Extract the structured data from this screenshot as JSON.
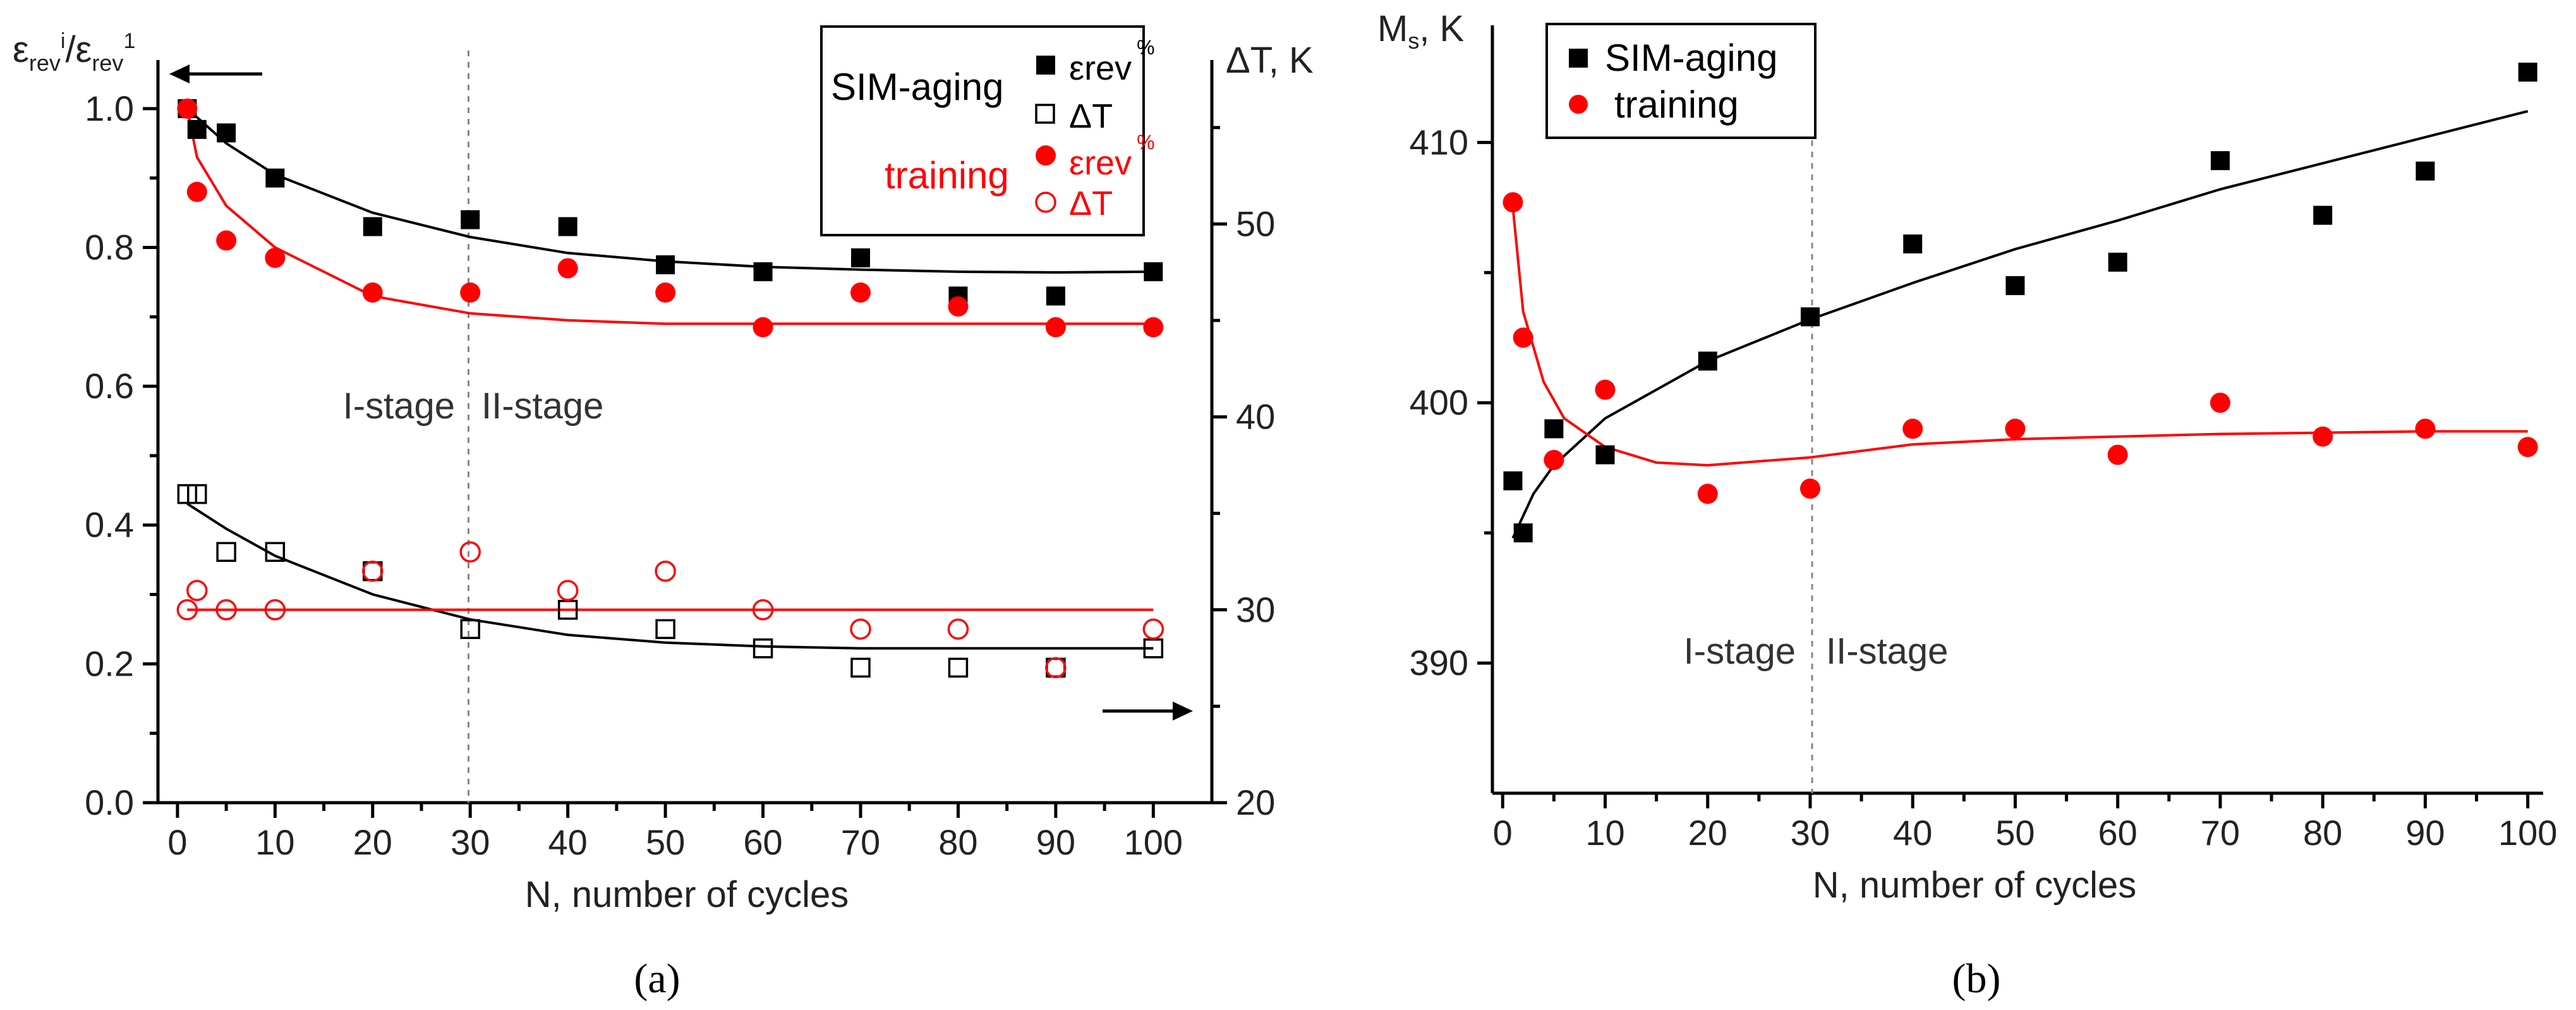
{
  "chart_data": [
    {
      "panel": "(a)",
      "type": "scatter",
      "xlabel": "N, number of cycles",
      "ylabel": "εrevi/εrev1",
      "ylabel_right": "ΔT, K",
      "xlim": [
        -2,
        106
      ],
      "ylim": [
        0,
        1.07
      ],
      "ylim_right": [
        20,
        58.5
      ],
      "xticks": [
        0,
        10,
        20,
        30,
        40,
        50,
        60,
        70,
        80,
        90,
        100
      ],
      "yticks": [
        0,
        0.2,
        0.4,
        0.6,
        0.8,
        1.0
      ],
      "yticks_right": [
        20,
        30,
        40,
        50
      ],
      "stage_labels": [
        "I-stage",
        "II-stage"
      ],
      "stage_boundary_x": 30,
      "legend_groups": [
        {
          "name": "SIM-aging",
          "color": "#000000"
        },
        {
          "name": "training",
          "color": "#ff0000"
        }
      ],
      "series": [
        {
          "name": "SIM-aging εrev%",
          "legend": "εrev",
          "legend_sup": "%",
          "color": "#000000",
          "marker": "square-filled",
          "axis": "left",
          "x": [
            1,
            2,
            5,
            10,
            20,
            30,
            40,
            50,
            60,
            70,
            80,
            90,
            100
          ],
          "y": [
            1.0,
            0.97,
            0.965,
            0.9,
            0.83,
            0.84,
            0.83,
            0.775,
            0.765,
            0.785,
            0.73,
            0.73,
            0.765
          ],
          "fit": [
            [
              1,
              1.0
            ],
            [
              5,
              0.95
            ],
            [
              10,
              0.905
            ],
            [
              20,
              0.85
            ],
            [
              30,
              0.815
            ],
            [
              40,
              0.792
            ],
            [
              50,
              0.78
            ],
            [
              60,
              0.772
            ],
            [
              70,
              0.768
            ],
            [
              80,
              0.765
            ],
            [
              90,
              0.764
            ],
            [
              100,
              0.765
            ]
          ]
        },
        {
          "name": "SIM-aging ΔT",
          "legend": "ΔT",
          "color": "#000000",
          "marker": "square-open",
          "axis": "right",
          "x": [
            1,
            2,
            5,
            10,
            20,
            30,
            40,
            50,
            60,
            70,
            80,
            90,
            100
          ],
          "y": [
            36,
            36,
            33,
            33,
            32,
            29,
            30,
            29,
            28,
            27,
            27,
            27,
            28
          ],
          "fit": [
            [
              1,
              35.5
            ],
            [
              5,
              34.2
            ],
            [
              10,
              32.8
            ],
            [
              20,
              30.8
            ],
            [
              30,
              29.5
            ],
            [
              40,
              28.7
            ],
            [
              50,
              28.3
            ],
            [
              60,
              28.1
            ],
            [
              70,
              28.0
            ],
            [
              80,
              28.0
            ],
            [
              90,
              28.0
            ],
            [
              100,
              28.0
            ]
          ]
        },
        {
          "name": "training εrev%",
          "legend": "εrev",
          "legend_sup": "%",
          "color": "#ff0000",
          "marker": "circle-filled",
          "axis": "left",
          "x": [
            1,
            2,
            5,
            10,
            20,
            30,
            40,
            50,
            60,
            70,
            80,
            90,
            100
          ],
          "y": [
            1.0,
            0.88,
            0.81,
            0.785,
            0.735,
            0.735,
            0.77,
            0.735,
            0.685,
            0.735,
            0.715,
            0.685,
            0.685
          ],
          "fit": [
            [
              1,
              1.0
            ],
            [
              2,
              0.93
            ],
            [
              5,
              0.86
            ],
            [
              10,
              0.8
            ],
            [
              20,
              0.73
            ],
            [
              30,
              0.705
            ],
            [
              40,
              0.695
            ],
            [
              50,
              0.69
            ],
            [
              60,
              0.69
            ],
            [
              80,
              0.69
            ],
            [
              100,
              0.69
            ]
          ]
        },
        {
          "name": "training ΔT",
          "legend": "ΔT",
          "color": "#ff0000",
          "marker": "circle-open",
          "axis": "right",
          "x": [
            1,
            2,
            5,
            10,
            20,
            30,
            40,
            50,
            60,
            70,
            80,
            90,
            100
          ],
          "y": [
            30,
            31,
            30,
            30,
            32,
            33,
            31,
            32,
            30,
            29,
            29,
            27,
            29
          ],
          "fit": [
            [
              1,
              30
            ],
            [
              100,
              30
            ]
          ]
        }
      ]
    },
    {
      "panel": "(b)",
      "type": "scatter",
      "xlabel": "N, number of cycles",
      "ylabel": "Ms, K",
      "xlim": [
        -1,
        101.5
      ],
      "ylim": [
        385,
        414.5
      ],
      "xticks": [
        0,
        10,
        20,
        30,
        40,
        50,
        60,
        70,
        80,
        90,
        100
      ],
      "yticks": [
        390,
        400,
        410
      ],
      "stage_labels": [
        "I-stage",
        "II-stage"
      ],
      "stage_boundary_x": 30,
      "series": [
        {
          "name": "SIM-aging",
          "color": "#000000",
          "marker": "square-filled",
          "x": [
            1,
            2,
            5,
            10,
            20,
            30,
            40,
            50,
            60,
            70,
            80,
            90,
            100
          ],
          "y": [
            397,
            395,
            399,
            398,
            401.6,
            403.3,
            406.1,
            404.5,
            405.4,
            409.3,
            407.2,
            408.9,
            412.7
          ],
          "fit": [
            [
              1,
              394.8
            ],
            [
              3,
              396.5
            ],
            [
              5,
              397.6
            ],
            [
              10,
              399.4
            ],
            [
              20,
              401.6
            ],
            [
              30,
              403.2
            ],
            [
              40,
              404.6
            ],
            [
              50,
              405.9
            ],
            [
              60,
              407.0
            ],
            [
              70,
              408.2
            ],
            [
              80,
              409.2
            ],
            [
              90,
              410.2
            ],
            [
              100,
              411.2
            ]
          ]
        },
        {
          "name": "training",
          "color": "#ff0000",
          "marker": "circle-filled",
          "x": [
            1,
            2,
            5,
            10,
            20,
            30,
            40,
            50,
            60,
            70,
            80,
            90,
            100
          ],
          "y": [
            407.7,
            402.5,
            397.8,
            400.5,
            396.5,
            396.7,
            399,
            399,
            398,
            400,
            398.7,
            399,
            398.3
          ],
          "fit": [
            [
              1,
              407.5
            ],
            [
              2,
              403.5
            ],
            [
              4,
              400.8
            ],
            [
              6,
              399.4
            ],
            [
              10,
              398.3
            ],
            [
              15,
              397.7
            ],
            [
              20,
              397.6
            ],
            [
              30,
              397.9
            ],
            [
              40,
              398.4
            ],
            [
              50,
              398.6
            ],
            [
              60,
              398.7
            ],
            [
              70,
              398.8
            ],
            [
              80,
              398.85
            ],
            [
              90,
              398.9
            ],
            [
              100,
              398.9
            ]
          ]
        }
      ]
    }
  ]
}
